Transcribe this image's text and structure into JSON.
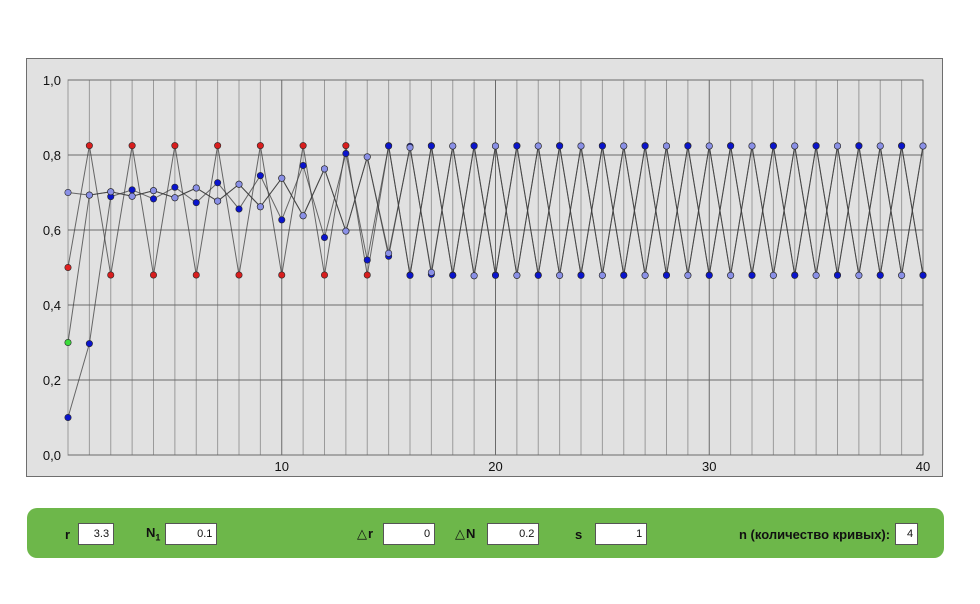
{
  "chart_data": {
    "type": "line",
    "xlim": [
      0,
      40
    ],
    "ylim": [
      0.0,
      1.0
    ],
    "x_ticks": [
      10,
      20,
      30,
      40
    ],
    "x_tick_labels": [
      "10",
      "20",
      "30",
      "40"
    ],
    "y_ticks": [
      0.0,
      0.2,
      0.4,
      0.6,
      0.8,
      1.0
    ],
    "y_tick_labels": [
      "0,0",
      "0,2",
      "0,4",
      "0,6",
      "0,8",
      "1,0"
    ],
    "grid": "vertical line at every integer x, horizontal line at each y tick",
    "series": [
      {
        "color": "#d81e1e",
        "initial_color": "#e02020",
        "values": [
          0.5,
          0.825,
          0.48,
          0.825,
          0.48,
          0.825,
          0.48,
          0.825,
          0.48,
          0.825,
          0.48,
          0.825,
          0.48,
          0.825,
          0.48,
          0.825,
          0.48,
          0.825,
          0.48,
          0.825,
          0.48,
          0.825,
          0.48,
          0.825,
          0.48,
          0.825,
          0.48,
          0.825,
          0.48,
          0.825,
          0.48,
          0.825,
          0.48,
          0.825,
          0.48,
          0.825,
          0.48,
          0.825,
          0.48,
          0.825,
          0.48
        ]
      },
      {
        "color": "#0a14cc",
        "initial_color": "#3cdc3c",
        "values": [
          0.3,
          0.693,
          0.702,
          0.69,
          0.705,
          0.686,
          0.712,
          0.677,
          0.722,
          0.662,
          0.738,
          0.638,
          0.763,
          0.597,
          0.795,
          0.53,
          0.823,
          0.482,
          0.824,
          0.478,
          0.824,
          0.479,
          0.824,
          0.479,
          0.824,
          0.479,
          0.824,
          0.479,
          0.824,
          0.479,
          0.824,
          0.479,
          0.824,
          0.479,
          0.824,
          0.479,
          0.824,
          0.479,
          0.824,
          0.479,
          0.824
        ]
      },
      {
        "color": "#0a14cc",
        "initial_color": "#0a14cc",
        "values": [
          0.1,
          0.297,
          0.689,
          0.707,
          0.683,
          0.714,
          0.673,
          0.726,
          0.656,
          0.745,
          0.627,
          0.772,
          0.58,
          0.804,
          0.52,
          0.824,
          0.479,
          0.824,
          0.479,
          0.824,
          0.479,
          0.824,
          0.479,
          0.824,
          0.479,
          0.824,
          0.479,
          0.824,
          0.479,
          0.824,
          0.479,
          0.824,
          0.479,
          0.824,
          0.479,
          0.824,
          0.479,
          0.824,
          0.479,
          0.824,
          0.479
        ]
      },
      {
        "color": "#8a90e6",
        "initial_color": "#8a90e6",
        "values": [
          0.7,
          0.693,
          0.702,
          0.69,
          0.705,
          0.686,
          0.712,
          0.677,
          0.722,
          0.662,
          0.738,
          0.638,
          0.763,
          0.597,
          0.795,
          0.538,
          0.82,
          0.487,
          0.824,
          0.478,
          0.824,
          0.479,
          0.824,
          0.479,
          0.824,
          0.479,
          0.824,
          0.479,
          0.824,
          0.479,
          0.824,
          0.479,
          0.824,
          0.479,
          0.824,
          0.479,
          0.824,
          0.479,
          0.824,
          0.479,
          0.824
        ]
      }
    ]
  },
  "controls": {
    "r_label": "r",
    "r_value": "3.3",
    "n1_label": "N",
    "n1_sub": "1",
    "n1_value": "0.1",
    "delta_symbol": "△",
    "dr_label": "r",
    "dr_value": "0",
    "dn_label": "N",
    "dn_value": "0.2",
    "s_label": "s",
    "s_value": "1",
    "n_label": "n (количество кривых):",
    "n_value": "4"
  }
}
